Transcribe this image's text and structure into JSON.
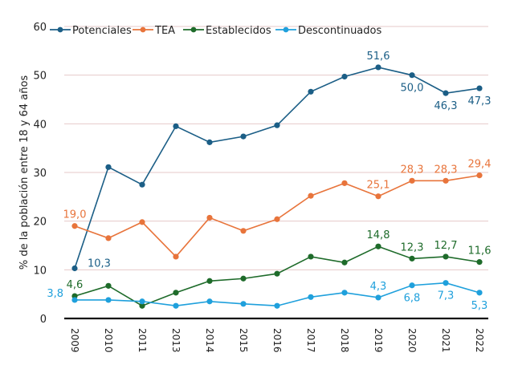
{
  "chart_data": {
    "type": "line",
    "title": "",
    "xlabel": "",
    "ylabel": "% de la población entre 18 y 64 años",
    "ylim": [
      0,
      60
    ],
    "yticks": [
      0,
      10,
      20,
      30,
      40,
      50,
      60
    ],
    "grid": true,
    "legend_position": "top",
    "x": [
      "2009",
      "2010",
      "2011",
      "2013",
      "2014",
      "2015",
      "2016",
      "2017",
      "2018",
      "2019",
      "2020",
      "2021",
      "2022"
    ],
    "series": [
      {
        "name": "Potenciales",
        "color": "#1b5e86",
        "values": [
          10.3,
          31.1,
          27.5,
          39.5,
          36.2,
          37.4,
          39.7,
          46.6,
          49.7,
          51.6,
          50.0,
          46.3,
          47.3
        ],
        "labels": [
          {
            "index": 0,
            "text": "10,3",
            "pos": "right"
          },
          {
            "index": 9,
            "text": "51,6",
            "pos": "above"
          },
          {
            "index": 10,
            "text": "50,0",
            "pos": "below"
          },
          {
            "index": 11,
            "text": "46,3",
            "pos": "below"
          },
          {
            "index": 12,
            "text": "47,3",
            "pos": "below"
          }
        ]
      },
      {
        "name": "TEA",
        "color": "#e8743b",
        "values": [
          19.0,
          16.5,
          19.8,
          12.7,
          20.7,
          18.0,
          20.4,
          25.2,
          27.8,
          25.1,
          28.3,
          28.3,
          29.4
        ],
        "labels": [
          {
            "index": 0,
            "text": "19,0",
            "pos": "above"
          },
          {
            "index": 9,
            "text": "25,1",
            "pos": "above"
          },
          {
            "index": 10,
            "text": "28,3",
            "pos": "above"
          },
          {
            "index": 11,
            "text": "28,3",
            "pos": "above"
          },
          {
            "index": 12,
            "text": "29,4",
            "pos": "above"
          }
        ]
      },
      {
        "name": "Establecidos",
        "color": "#1e6b2a",
        "values": [
          4.6,
          6.7,
          2.6,
          5.3,
          7.7,
          8.2,
          9.2,
          12.7,
          11.5,
          14.8,
          12.3,
          12.7,
          11.6
        ],
        "labels": [
          {
            "index": 0,
            "text": "4,6",
            "pos": "above"
          },
          {
            "index": 9,
            "text": "14,8",
            "pos": "above"
          },
          {
            "index": 10,
            "text": "12,3",
            "pos": "above"
          },
          {
            "index": 11,
            "text": "12,7",
            "pos": "above"
          },
          {
            "index": 12,
            "text": "11,6",
            "pos": "above"
          }
        ]
      },
      {
        "name": "Descontinuados",
        "color": "#1fa0dc",
        "values": [
          3.8,
          3.8,
          3.5,
          2.6,
          3.5,
          3.0,
          2.6,
          4.4,
          5.3,
          4.3,
          6.8,
          7.3,
          5.3
        ],
        "labels": [
          {
            "index": 0,
            "text": "3,8",
            "pos": "left"
          },
          {
            "index": 9,
            "text": "4,3",
            "pos": "above"
          },
          {
            "index": 10,
            "text": "6,8",
            "pos": "below"
          },
          {
            "index": 11,
            "text": "7,3",
            "pos": "below"
          },
          {
            "index": 12,
            "text": "5,3",
            "pos": "below"
          }
        ]
      }
    ]
  }
}
